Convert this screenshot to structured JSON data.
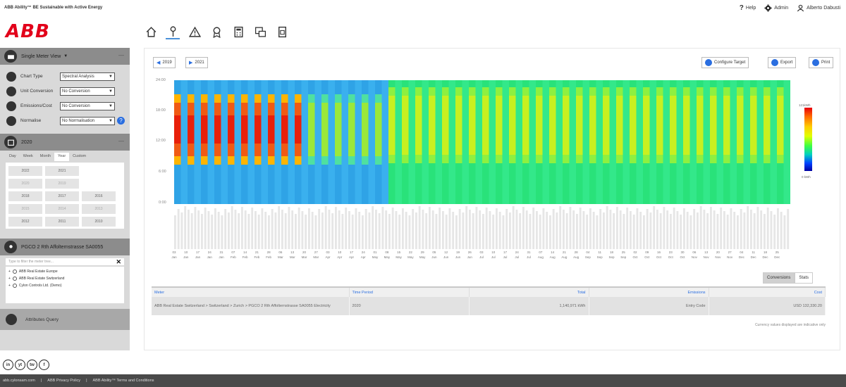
{
  "app": {
    "title": "ABB Ability™ BE Sustainable with Active Energy",
    "logo_text": "ABB"
  },
  "header": {
    "help": "Help",
    "admin": "Admin",
    "user": "Alberto Dabusti"
  },
  "nav_icons": [
    "home-icon",
    "meter-icon",
    "alert-icon",
    "badge-icon",
    "calculator-icon",
    "report-icon",
    "document-icon"
  ],
  "sidebar": {
    "view_title": "Single Meter View",
    "options": [
      {
        "label": "Chart Type",
        "value": "Spectral Analysis",
        "icon": "chart-icon"
      },
      {
        "label": "Unit Conversion",
        "value": "No Conversion",
        "icon": "convert-icon"
      },
      {
        "label": "Emissions/Cost",
        "value": "No Conversion",
        "icon": "emissions-icon"
      },
      {
        "label": "Normalise",
        "value": "No Normalisation",
        "icon": "normalise-icon"
      }
    ],
    "period_title": "2020",
    "period_tabs": [
      "Day",
      "Week",
      "Month",
      "Year",
      "Custom"
    ],
    "active_tab": "Year",
    "years": [
      "2022",
      "2021",
      "",
      "2020",
      "2019",
      "",
      "2018",
      "2017",
      "2016",
      "2015",
      "2014",
      "2013",
      "2012",
      "2011",
      "2010"
    ],
    "meter_title": "PGCO 2 Rth Affolternstrasse SA0055",
    "filter_placeholder": "Type to filter the meter tree...",
    "tree": [
      "ABB Real Estate Europe",
      "ABB Real Estate Switzerland",
      "Cylon Controls Ltd. (Demo)"
    ],
    "attributes": "Attributes Query"
  },
  "controls": {
    "prev_year": "2019",
    "next_year": "2021",
    "configure": "Configure Target",
    "export": "Export",
    "print": "Print"
  },
  "chart_data": {
    "type": "heatmap",
    "y_ticks": [
      "24:00",
      "18:00",
      "12:00",
      "6:00",
      "0:00"
    ],
    "legend_max": "121kWh",
    "legend_min": "0 kWh",
    "x_ticks": [
      [
        "03",
        "Jan"
      ],
      [
        "10",
        "Jan"
      ],
      [
        "17",
        "Jan"
      ],
      [
        "24",
        "Jan"
      ],
      [
        "31",
        "Jan"
      ],
      [
        "07",
        "Feb"
      ],
      [
        "14",
        "Feb"
      ],
      [
        "21",
        "Feb"
      ],
      [
        "28",
        "Feb"
      ],
      [
        "06",
        "Mar"
      ],
      [
        "13",
        "Mar"
      ],
      [
        "20",
        "Mar"
      ],
      [
        "27",
        "Mar"
      ],
      [
        "03",
        "Apr"
      ],
      [
        "10",
        "Apr"
      ],
      [
        "17",
        "Apr"
      ],
      [
        "24",
        "Apr"
      ],
      [
        "01",
        "May"
      ],
      [
        "08",
        "May"
      ],
      [
        "15",
        "May"
      ],
      [
        "22",
        "May"
      ],
      [
        "29",
        "May"
      ],
      [
        "05",
        "Jun"
      ],
      [
        "12",
        "Jun"
      ],
      [
        "19",
        "Jun"
      ],
      [
        "26",
        "Jun"
      ],
      [
        "03",
        "Jul"
      ],
      [
        "10",
        "Jul"
      ],
      [
        "17",
        "Jul"
      ],
      [
        "24",
        "Jul"
      ],
      [
        "31",
        "Jul"
      ],
      [
        "07",
        "Aug"
      ],
      [
        "14",
        "Aug"
      ],
      [
        "21",
        "Aug"
      ],
      [
        "28",
        "Aug"
      ],
      [
        "04",
        "Sep"
      ],
      [
        "11",
        "Sep"
      ],
      [
        "18",
        "Sep"
      ],
      [
        "25",
        "Sep"
      ],
      [
        "02",
        "Oct"
      ],
      [
        "09",
        "Oct"
      ],
      [
        "16",
        "Oct"
      ],
      [
        "23",
        "Oct"
      ],
      [
        "30",
        "Oct"
      ],
      [
        "06",
        "Nov"
      ],
      [
        "13",
        "Nov"
      ],
      [
        "20",
        "Nov"
      ],
      [
        "27",
        "Nov"
      ],
      [
        "04",
        "Dec"
      ],
      [
        "11",
        "Dec"
      ],
      [
        "18",
        "Dec"
      ],
      [
        "25",
        "Dec"
      ]
    ]
  },
  "table": {
    "toggle": [
      "Conversions",
      "Stats"
    ],
    "headers": [
      "Meter",
      "Time Period",
      "Total",
      "Emissions",
      "Cost"
    ],
    "row": {
      "meter": "ABB Real Estate Switzerland > Switzerland > Zurich > PGCO 2 Rth Affolternstrasse SA0055 Electricity",
      "period": "2020",
      "total": "1,140,971 kWh",
      "emissions": "Entry Code",
      "cost": "USD 132,330.20"
    },
    "note": "Currency values displayed are indicative only"
  },
  "social": [
    "in",
    "yt",
    "tw",
    "f"
  ],
  "footer": [
    "abb.cylonsam.com",
    "ABB Privacy Policy",
    "ABB Ability™ Terms and Conditions"
  ]
}
